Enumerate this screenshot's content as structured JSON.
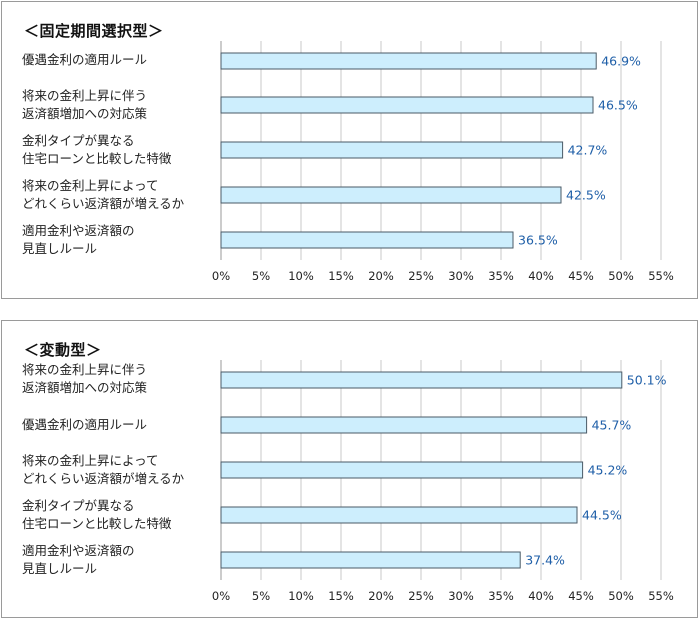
{
  "chart_data": [
    {
      "type": "bar",
      "orientation": "horizontal",
      "title": "＜固定期間選択型＞",
      "categories": [
        "優遇金利の適用ルール",
        "将来の金利上昇に伴う\n返済額増加への対応策",
        "金利タイプが異なる\n住宅ローンと比較した特徴",
        "将来の金利上昇によって\nどれくらい返済額が増えるか",
        "適用金利や返済額の\n見直しルール"
      ],
      "values": [
        46.9,
        46.5,
        42.7,
        42.5,
        36.5
      ],
      "value_labels": [
        "46.9%",
        "46.5%",
        "42.7%",
        "42.5%",
        "36.5%"
      ],
      "xlim": [
        0,
        55
      ],
      "xticks": [
        "0%",
        "5%",
        "10%",
        "15%",
        "20%",
        "25%",
        "30%",
        "35%",
        "40%",
        "45%",
        "50%",
        "55%"
      ],
      "grid": true
    },
    {
      "type": "bar",
      "orientation": "horizontal",
      "title": "＜変動型＞",
      "categories": [
        "将来の金利上昇に伴う\n返済額増加への対応策",
        "優遇金利の適用ルール",
        "将来の金利上昇によって\nどれくらい返済額が増えるか",
        "金利タイプが異なる\n住宅ローンと比較した特徴",
        "適用金利や返済額の\n見直しルール"
      ],
      "values": [
        50.1,
        45.7,
        45.2,
        44.5,
        37.4
      ],
      "value_labels": [
        "50.1%",
        "45.7%",
        "45.2%",
        "44.5%",
        "37.4%"
      ],
      "xlim": [
        0,
        55
      ],
      "xticks": [
        "0%",
        "5%",
        "10%",
        "15%",
        "20%",
        "25%",
        "30%",
        "35%",
        "40%",
        "45%",
        "50%",
        "55%"
      ],
      "grid": true
    }
  ],
  "colors": {
    "bar_fill": "#cdeefd",
    "bar_stroke": "#4a5a66",
    "grid": "#c8c8c8",
    "value_text": "#1f5fa8"
  }
}
